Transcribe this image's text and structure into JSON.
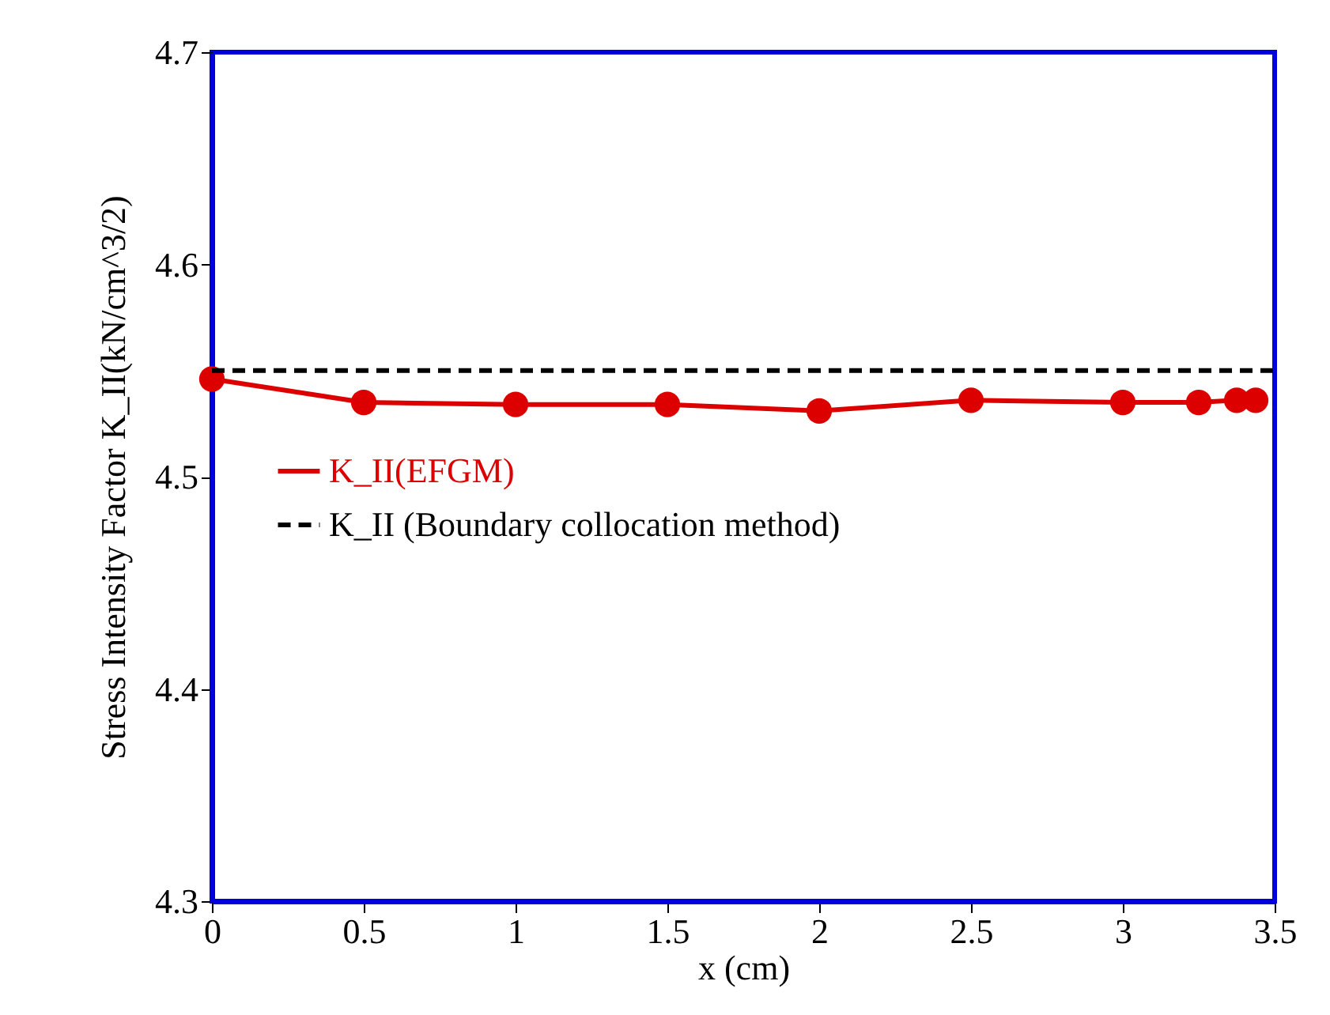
{
  "chart_data": {
    "type": "line",
    "xlabel": "x (cm)",
    "ylabel": "Stress Intensity Factor K_II(kN/cm^3/2)",
    "xlim": [
      0,
      3.5
    ],
    "xticks": [
      0,
      0.5,
      1,
      1.5,
      2,
      2.5,
      3,
      3.5
    ],
    "ylim": [
      4.3,
      4.7
    ],
    "yticks": [
      4.3,
      4.4,
      4.5,
      4.6,
      4.7
    ],
    "grid": false,
    "legend": "left",
    "series": [
      {
        "name": "K_II(EFGM)",
        "color": "#dd0000",
        "marker": "circle",
        "line_style": "solid",
        "x": [
          0,
          0.5,
          1,
          1.5,
          2,
          2.5,
          3,
          3.25,
          3.375,
          3.4375
        ],
        "values": [
          4.546,
          4.535,
          4.534,
          4.534,
          4.531,
          4.536,
          4.535,
          4.535,
          4.536,
          4.536
        ]
      },
      {
        "name": "K_II (Boundary collocation method)",
        "color": "#000000",
        "marker": "none",
        "line_style": "dashed",
        "x": [
          0,
          3.5
        ],
        "values": [
          4.55,
          4.55
        ]
      }
    ]
  }
}
